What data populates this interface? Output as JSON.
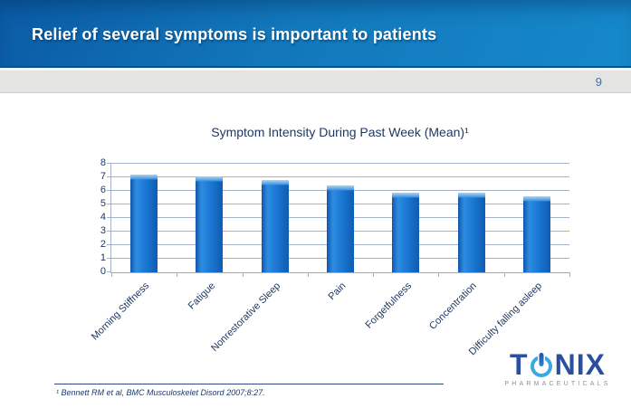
{
  "slide": {
    "title": "Relief of several symptoms is important to patients",
    "page_number": "9"
  },
  "chart_data": {
    "type": "bar",
    "title": "Symptom Intensity During Past Week (Mean)¹",
    "categories": [
      "Morning Stiffness",
      "Fatigue",
      "Nonrestorative Sleep",
      "Pain",
      "Forgetfulness",
      "Concentration",
      "Difficulty falling asleep"
    ],
    "values": [
      7.2,
      7.1,
      6.8,
      6.4,
      5.9,
      5.9,
      5.6
    ],
    "xlabel": "",
    "ylabel": "",
    "ylim": [
      0,
      8
    ],
    "yticks": [
      0,
      1,
      2,
      3,
      4,
      5,
      6,
      7,
      8
    ],
    "grid": true,
    "legend_position": "none",
    "bar_color": "#1a75d0"
  },
  "footer": {
    "citation": "¹ Bennett RM et al, BMC Musculoskelet Disord 2007;8:27."
  },
  "logo": {
    "brand_prefix": "T",
    "brand_suffix": "NIX",
    "subtitle": "PHARMACEUTICALS"
  },
  "colors": {
    "header_blue": "#1277bb",
    "navy_text": "#1f3864",
    "gridline": "#a3b2c8",
    "page_number_blue": "#3c74ad",
    "bar_blue": "#1a75d0",
    "logo_blue": "#2a4f9e",
    "logo_light_blue": "#3ba9e1"
  }
}
